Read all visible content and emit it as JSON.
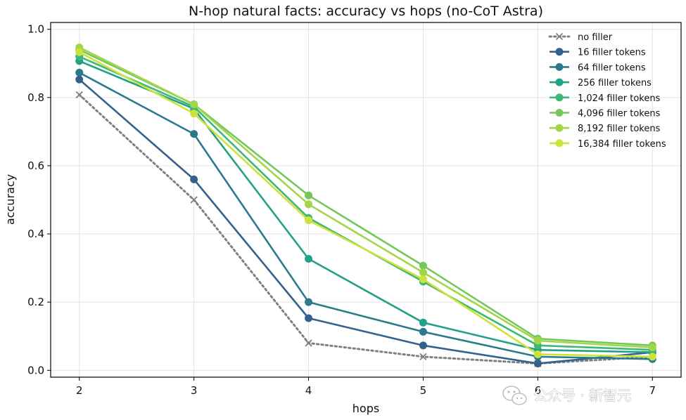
{
  "chart_data": {
    "type": "line",
    "title": "N-hop natural facts: accuracy vs hops (no-CoT Astra)",
    "xlabel": "hops",
    "ylabel": "accuracy",
    "x": [
      2,
      3,
      4,
      5,
      6,
      7
    ],
    "xticks": [
      "2",
      "3",
      "4",
      "5",
      "6",
      "7"
    ],
    "yticks": [
      "0.0",
      "0.2",
      "0.4",
      "0.6",
      "0.8",
      "1.0"
    ],
    "xlim": [
      1.75,
      7.25
    ],
    "ylim": [
      -0.02,
      1.02
    ],
    "grid": true,
    "legend_position": "top-right",
    "series": [
      {
        "name": "no filler",
        "color": "#808080",
        "style": "dotted",
        "marker": "x",
        "values": [
          0.808,
          0.5,
          0.08,
          0.04,
          0.02,
          0.04
        ]
      },
      {
        "name": "16 filler tokens",
        "color": "#34628c",
        "style": "solid",
        "marker": "circle",
        "values": [
          0.853,
          0.56,
          0.153,
          0.073,
          0.02,
          0.053
        ]
      },
      {
        "name": "64 filler tokens",
        "color": "#2b7a8c",
        "style": "solid",
        "marker": "circle",
        "values": [
          0.873,
          0.693,
          0.2,
          0.113,
          0.04,
          0.033
        ]
      },
      {
        "name": "256 filler tokens",
        "color": "#22a088",
        "style": "solid",
        "marker": "circle",
        "values": [
          0.907,
          0.767,
          0.327,
          0.14,
          0.06,
          0.053
        ]
      },
      {
        "name": "1,024 filler tokens",
        "color": "#3cb878",
        "style": "solid",
        "marker": "circle",
        "values": [
          0.92,
          0.773,
          0.447,
          0.26,
          0.073,
          0.06
        ]
      },
      {
        "name": "4,096 filler tokens",
        "color": "#74c85a",
        "style": "solid",
        "marker": "circle",
        "values": [
          0.94,
          0.78,
          0.513,
          0.307,
          0.093,
          0.073
        ]
      },
      {
        "name": "8,192 filler tokens",
        "color": "#a2d64a",
        "style": "solid",
        "marker": "circle",
        "values": [
          0.947,
          0.78,
          0.487,
          0.287,
          0.087,
          0.067
        ]
      },
      {
        "name": "16,384 filler tokens",
        "color": "#cde23a",
        "style": "solid",
        "marker": "circle",
        "values": [
          0.933,
          0.753,
          0.44,
          0.267,
          0.047,
          0.04
        ]
      }
    ]
  },
  "watermark": {
    "text": "公众号 · 新智元",
    "icon": "wechat-icon"
  }
}
